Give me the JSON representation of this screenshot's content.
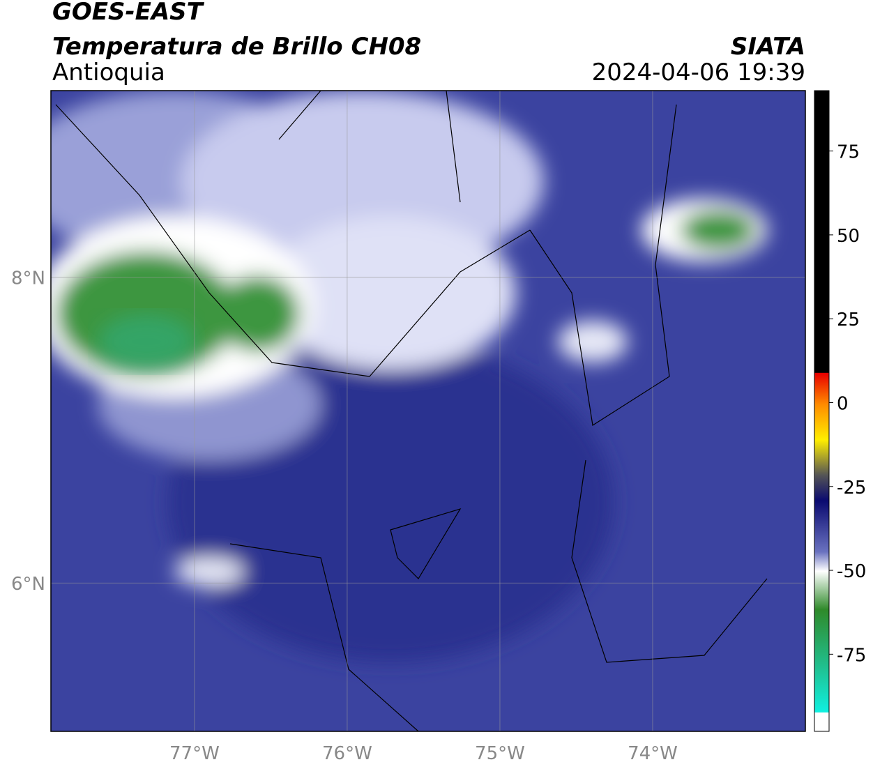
{
  "header": {
    "title": "GOES-EAST",
    "subtitle": "Temperatura de Brillo CH08",
    "region": "Antioquia",
    "source": "SIATA",
    "datetime": "2024-04-06 19:39"
  },
  "map": {
    "xlim": [
      -77.94,
      -73.0
    ],
    "ylim": [
      5.03,
      9.22
    ],
    "xticks": [
      {
        "value": -77,
        "label": "77°W"
      },
      {
        "value": -76,
        "label": "76°W"
      },
      {
        "value": -75,
        "label": "75°W"
      },
      {
        "value": -74,
        "label": "74°W"
      }
    ],
    "yticks": [
      {
        "value": 8,
        "label": "8°N"
      },
      {
        "value": 6,
        "label": "6°N"
      }
    ],
    "grid": true
  },
  "colorbar": {
    "lim": [
      -98,
      93
    ],
    "ticks": [
      75,
      50,
      25,
      0,
      -25,
      -50,
      -75
    ]
  }
}
